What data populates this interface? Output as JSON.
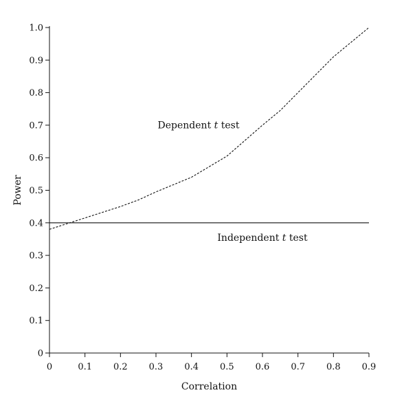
{
  "chart_data": {
    "type": "line",
    "xlabel": "Correlation",
    "ylabel": "Power",
    "xlim": [
      0,
      0.9
    ],
    "ylim": [
      0,
      1.0
    ],
    "x_ticks": [
      "0",
      "0.1",
      "0.2",
      "0.3",
      "0.4",
      "0.5",
      "0.6",
      "0.7",
      "0.8",
      "0.9"
    ],
    "y_ticks": [
      "0",
      "0.1",
      "0.2",
      "0.3",
      "0.4",
      "0.5",
      "0.6",
      "0.7",
      "0.8",
      "0.9",
      "1.0"
    ],
    "grid": false,
    "legend": "none",
    "series": [
      {
        "style": "dashed",
        "x": [
          0.0,
          0.1,
          0.2,
          0.25,
          0.3,
          0.4,
          0.5,
          0.6,
          0.65,
          0.7,
          0.8,
          0.9
        ],
        "y": [
          0.38,
          0.415,
          0.45,
          0.47,
          0.495,
          0.54,
          0.605,
          0.7,
          0.745,
          0.8,
          0.91,
          1.0
        ]
      },
      {
        "style": "solid",
        "x": [
          0.0,
          0.9
        ],
        "y": [
          0.4,
          0.4
        ]
      }
    ],
    "annotations": [
      {
        "text": "Dependent ",
        "italic": "t",
        "rest": " test",
        "x": 0.42,
        "y": 0.69
      },
      {
        "text": "Independent ",
        "italic": "t",
        "rest": " test",
        "x": 0.6,
        "y": 0.345
      }
    ]
  }
}
